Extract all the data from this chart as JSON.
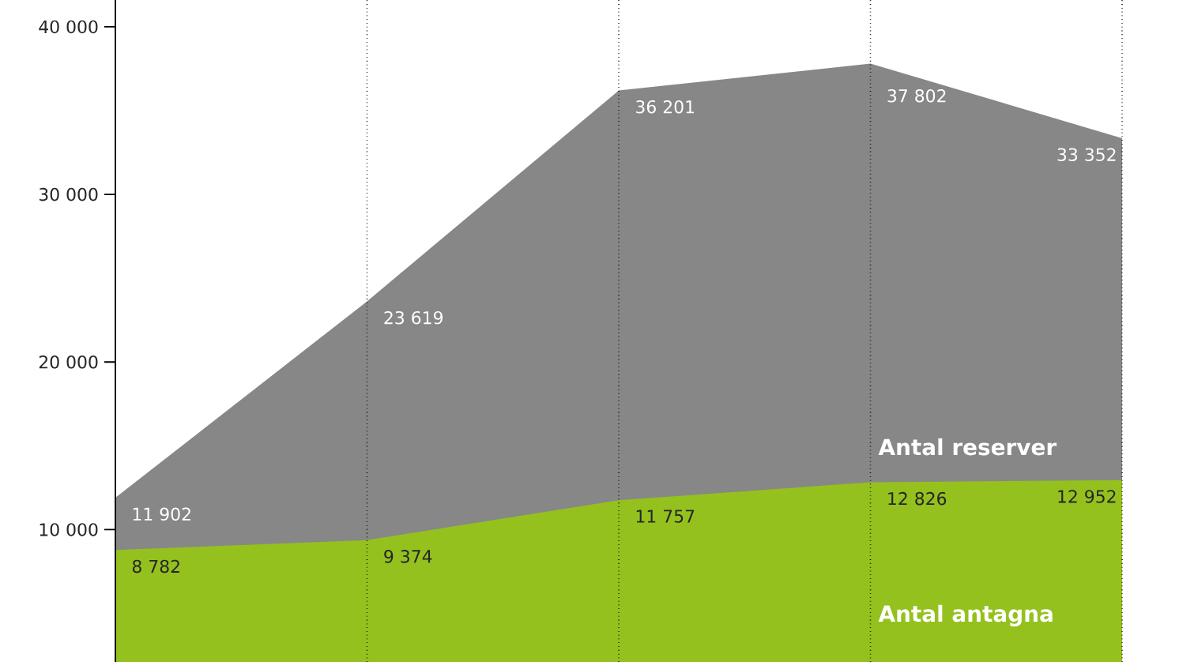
{
  "chart_data": {
    "type": "area",
    "categories": [
      null,
      null,
      null,
      null,
      null
    ],
    "series": [
      {
        "name": "Antal reserver",
        "color": "#878787",
        "values": [
          11902,
          23619,
          36201,
          37802,
          33352
        ],
        "value_labels": [
          "11 902",
          "23 619",
          "36 201",
          "37 802",
          "33 352"
        ]
      },
      {
        "name": "Antal antagna",
        "color": "#95c11f",
        "values": [
          8782,
          9374,
          11757,
          12826,
          12952
        ],
        "value_labels": [
          "8 782",
          "9 374",
          "11 757",
          "12 826",
          "12 952"
        ]
      }
    ],
    "ylim": [
      2100,
      41600
    ],
    "yticks": [
      {
        "value": 10000,
        "label": "10 000"
      },
      {
        "value": 20000,
        "label": "20 000"
      },
      {
        "value": 30000,
        "label": "30 000"
      },
      {
        "value": 40000,
        "label": "40 000"
      }
    ],
    "grid": "x",
    "tick_labels": "y"
  }
}
